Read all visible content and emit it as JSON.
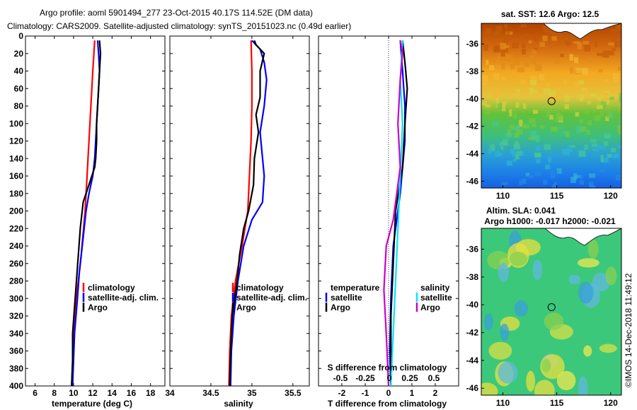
{
  "header": {
    "line1": "Argo profile: aoml 5901494_277 23-Oct-2015 40.17S 114.52E (DM data)",
    "line2": "Climatology: CARS2009. Satellite-adjusted climatology: synTS_20151023.nc (0.49d earlier)"
  },
  "colors": {
    "climatology": "#ff0000",
    "satellite": "#0000ff",
    "argo": "#000000",
    "salinity_satellite": "#00e5ff",
    "salinity_argo": "#cc00cc"
  },
  "footer": {
    "credit": "©IMOS 14-Dec-2018 11:49:12"
  },
  "chart_data": [
    {
      "type": "line",
      "id": "temperature",
      "xlabel": "temperature (deg C)",
      "xlim": [
        5,
        19.5
      ],
      "ylim": [
        0,
        400
      ],
      "y_inverted": true,
      "xticks": [
        6,
        8,
        10,
        12,
        14,
        16,
        18
      ],
      "xtick_labels": [
        "6",
        "8",
        "10",
        "12",
        "14",
        "16",
        "18"
      ],
      "yticks": [
        0,
        20,
        40,
        60,
        80,
        100,
        120,
        140,
        160,
        180,
        200,
        220,
        240,
        260,
        280,
        300,
        320,
        340,
        360,
        380,
        400
      ],
      "ytick_labels": [
        "0",
        "20",
        "40",
        "60",
        "80",
        "100",
        "120",
        "140",
        "160",
        "180",
        "200",
        "220",
        "240",
        "260",
        "280",
        "300",
        "320",
        "340",
        "360",
        "380",
        "400"
      ],
      "legend": [
        "climatology",
        "satellite-adj. clim.",
        "Argo"
      ],
      "series": [
        {
          "name": "climatology",
          "color": "#ff0000",
          "points": [
            [
              12.2,
              5
            ],
            [
              12.0,
              40
            ],
            [
              11.8,
              80
            ],
            [
              11.6,
              120
            ],
            [
              11.4,
              160
            ],
            [
              11.2,
              200
            ],
            [
              10.8,
              250
            ],
            [
              10.3,
              300
            ],
            [
              10.0,
              350
            ],
            [
              9.8,
              400
            ]
          ]
        },
        {
          "name": "satellite-adj. clim.",
          "color": "#0000ff",
          "points": [
            [
              12.5,
              5
            ],
            [
              12.6,
              20
            ],
            [
              12.7,
              40
            ],
            [
              12.6,
              60
            ],
            [
              12.5,
              80
            ],
            [
              12.4,
              100
            ],
            [
              12.3,
              120
            ],
            [
              12.2,
              140
            ],
            [
              12.0,
              160
            ],
            [
              11.6,
              180
            ],
            [
              11.3,
              200
            ],
            [
              11.1,
              220
            ],
            [
              10.9,
              240
            ],
            [
              10.6,
              270
            ],
            [
              10.4,
              300
            ],
            [
              10.1,
              340
            ],
            [
              10.0,
              370
            ],
            [
              9.9,
              400
            ]
          ]
        },
        {
          "name": "Argo",
          "color": "#000000",
          "points": [
            [
              12.7,
              5
            ],
            [
              12.8,
              20
            ],
            [
              12.7,
              40
            ],
            [
              12.6,
              60
            ],
            [
              12.5,
              80
            ],
            [
              12.4,
              100
            ],
            [
              12.4,
              120
            ],
            [
              12.3,
              140
            ],
            [
              12.2,
              150
            ],
            [
              11.6,
              170
            ],
            [
              11.0,
              190
            ],
            [
              10.7,
              220
            ],
            [
              10.5,
              250
            ],
            [
              10.3,
              280
            ],
            [
              10.1,
              310
            ],
            [
              9.9,
              340
            ],
            [
              9.9,
              370
            ],
            [
              9.8,
              400
            ]
          ]
        }
      ]
    },
    {
      "type": "line",
      "id": "salinity",
      "xlabel": "salinity",
      "xlim": [
        34,
        35.7
      ],
      "ylim": [
        0,
        400
      ],
      "y_inverted": true,
      "xticks": [
        34,
        34.5,
        35,
        35.5
      ],
      "xtick_labels": [
        "34",
        "34.5",
        "35",
        "35.5"
      ],
      "legend": [
        "climatology",
        "satellite-adj. clim.",
        "Argo"
      ],
      "series": [
        {
          "name": "climatology",
          "color": "#ff0000",
          "points": [
            [
              34.99,
              5
            ],
            [
              35.0,
              40
            ],
            [
              35.0,
              80
            ],
            [
              34.99,
              120
            ],
            [
              34.97,
              160
            ],
            [
              34.95,
              200
            ],
            [
              34.88,
              240
            ],
            [
              34.8,
              280
            ],
            [
              34.75,
              320
            ],
            [
              34.73,
              360
            ],
            [
              34.72,
              400
            ]
          ]
        },
        {
          "name": "satellite-adj. clim.",
          "color": "#0000ff",
          "points": [
            [
              35.0,
              5
            ],
            [
              35.1,
              15
            ],
            [
              35.15,
              30
            ],
            [
              35.18,
              50
            ],
            [
              35.15,
              80
            ],
            [
              35.1,
              110
            ],
            [
              35.12,
              130
            ],
            [
              35.15,
              160
            ],
            [
              35.13,
              190
            ],
            [
              35.0,
              210
            ],
            [
              34.9,
              240
            ],
            [
              34.83,
              280
            ],
            [
              34.78,
              320
            ],
            [
              34.75,
              360
            ],
            [
              34.74,
              400
            ]
          ]
        },
        {
          "name": "Argo",
          "color": "#000000",
          "points": [
            [
              35.03,
              5
            ],
            [
              35.05,
              10
            ],
            [
              35.15,
              20
            ],
            [
              35.1,
              40
            ],
            [
              35.1,
              70
            ],
            [
              35.05,
              90
            ],
            [
              35.08,
              110
            ],
            [
              35.03,
              140
            ],
            [
              35.02,
              170
            ],
            [
              34.96,
              200
            ],
            [
              34.9,
              220
            ],
            [
              34.85,
              250
            ],
            [
              34.82,
              280
            ],
            [
              34.76,
              320
            ],
            [
              34.74,
              360
            ],
            [
              34.73,
              400
            ]
          ]
        }
      ]
    },
    {
      "type": "line",
      "id": "difference",
      "xlabel": "T difference from climatology",
      "xlabel_top": "S difference from climatology",
      "xlim": [
        -3,
        3
      ],
      "ylim": [
        0,
        400
      ],
      "y_inverted": true,
      "xticks": [
        -2,
        -1,
        0,
        1,
        2
      ],
      "xtick_labels": [
        "-2",
        "-1",
        "0",
        "1",
        "2"
      ],
      "s_ticks": [
        "-0.5",
        "-0.25",
        "0",
        "0.25",
        "0.5"
      ],
      "legend_temperature_title": "temperature",
      "legend_temperature": [
        "satellite",
        "Argo"
      ],
      "legend_salinity_title": "salinity",
      "legend_salinity": [
        "satellite",
        "Argo"
      ],
      "series": [
        {
          "name": "temperature satellite",
          "color": "#0000ff",
          "points": [
            [
              0.5,
              5
            ],
            [
              0.6,
              40
            ],
            [
              0.7,
              80
            ],
            [
              0.7,
              120
            ],
            [
              0.5,
              180
            ],
            [
              0.2,
              240
            ],
            [
              0.1,
              300
            ],
            [
              0.05,
              360
            ],
            [
              0.1,
              400
            ]
          ]
        },
        {
          "name": "temperature Argo",
          "color": "#000000",
          "points": [
            [
              0.6,
              5
            ],
            [
              0.7,
              30
            ],
            [
              0.8,
              60
            ],
            [
              0.7,
              100
            ],
            [
              0.6,
              150
            ],
            [
              0.3,
              200
            ],
            [
              0.2,
              260
            ],
            [
              0.1,
              320
            ],
            [
              0.1,
              400
            ]
          ]
        },
        {
          "name": "salinity satellite",
          "color": "#00e5ff",
          "points": [
            [
              0.6,
              5
            ],
            [
              0.5,
              50
            ],
            [
              0.6,
              100
            ],
            [
              0.5,
              160
            ],
            [
              0.4,
              220
            ],
            [
              0.3,
              280
            ],
            [
              0.2,
              340
            ],
            [
              0.1,
              400
            ]
          ]
        },
        {
          "name": "salinity Argo",
          "color": "#cc00cc",
          "points": [
            [
              0.5,
              5
            ],
            [
              0.6,
              20
            ],
            [
              0.5,
              50
            ],
            [
              0.4,
              100
            ],
            [
              0.5,
              150
            ],
            [
              0.2,
              210
            ],
            [
              -0.1,
              240
            ],
            [
              -0.2,
              290
            ],
            [
              -0.1,
              340
            ],
            [
              0.0,
              400
            ]
          ]
        }
      ]
    },
    {
      "type": "heatmap",
      "id": "sst_map",
      "title": "sat. SST: 12.6 Argo: 12.5",
      "xlim": [
        108,
        121
      ],
      "ylim": [
        -46.5,
        -34.5
      ],
      "xtick_labels": [
        "110",
        "115",
        "120"
      ],
      "ytick_labels": [
        "-36",
        "-38",
        "-40",
        "-42",
        "-44",
        "-46"
      ],
      "marker": {
        "lon": 114.52,
        "lat": -40.17
      }
    },
    {
      "type": "heatmap",
      "id": "sla_map",
      "title": "Altim. SLA: 0.041",
      "subtitle": "Argo h1000: -0.017 h2000: -0.021",
      "xlim": [
        108,
        121
      ],
      "ylim": [
        -46.5,
        -34.5
      ],
      "xtick_labels": [
        "110",
        "115",
        "120"
      ],
      "ytick_labels": [
        "-36",
        "-38",
        "-40",
        "-42",
        "-44",
        "-46"
      ],
      "marker": {
        "lon": 114.52,
        "lat": -40.17
      }
    }
  ]
}
